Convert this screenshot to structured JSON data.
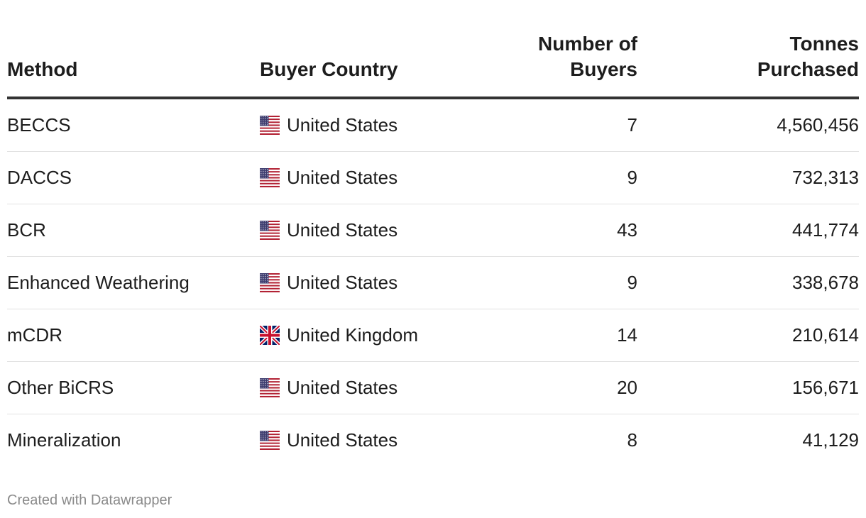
{
  "chart_data": {
    "type": "table",
    "columns": [
      "Method",
      "Buyer Country",
      "Number of Buyers",
      "Tonnes Purchased"
    ],
    "rows": [
      {
        "method": "BECCS",
        "country": "United States",
        "flag": "us-flag-icon",
        "buyers": "7",
        "tonnes": "4,560,456"
      },
      {
        "method": "DACCS",
        "country": "United States",
        "flag": "us-flag-icon",
        "buyers": "9",
        "tonnes": "732,313"
      },
      {
        "method": "BCR",
        "country": "United States",
        "flag": "us-flag-icon",
        "buyers": "43",
        "tonnes": "441,774"
      },
      {
        "method": "Enhanced Weathering",
        "country": "United States",
        "flag": "us-flag-icon",
        "buyers": "9",
        "tonnes": "338,678"
      },
      {
        "method": "mCDR",
        "country": "United Kingdom",
        "flag": "uk-flag-icon",
        "buyers": "14",
        "tonnes": "210,614"
      },
      {
        "method": "Other BiCRS",
        "country": "United States",
        "flag": "us-flag-icon",
        "buyers": "20",
        "tonnes": "156,671"
      },
      {
        "method": "Mineralization",
        "country": "United States",
        "flag": "us-flag-icon",
        "buyers": "8",
        "tonnes": "41,129"
      }
    ]
  },
  "header": {
    "method": "Method",
    "country": "Buyer Country",
    "buyers_line1": "Number of",
    "buyers_line2": "Buyers",
    "tonnes_line1": "Tonnes",
    "tonnes_line2": "Purchased"
  },
  "footer": {
    "credit": "Created with Datawrapper"
  },
  "colors": {
    "text": "#1d1d1d",
    "header_rule": "#333333",
    "row_rule": "#e2e2e2",
    "footer_text": "#8a8a8a"
  }
}
